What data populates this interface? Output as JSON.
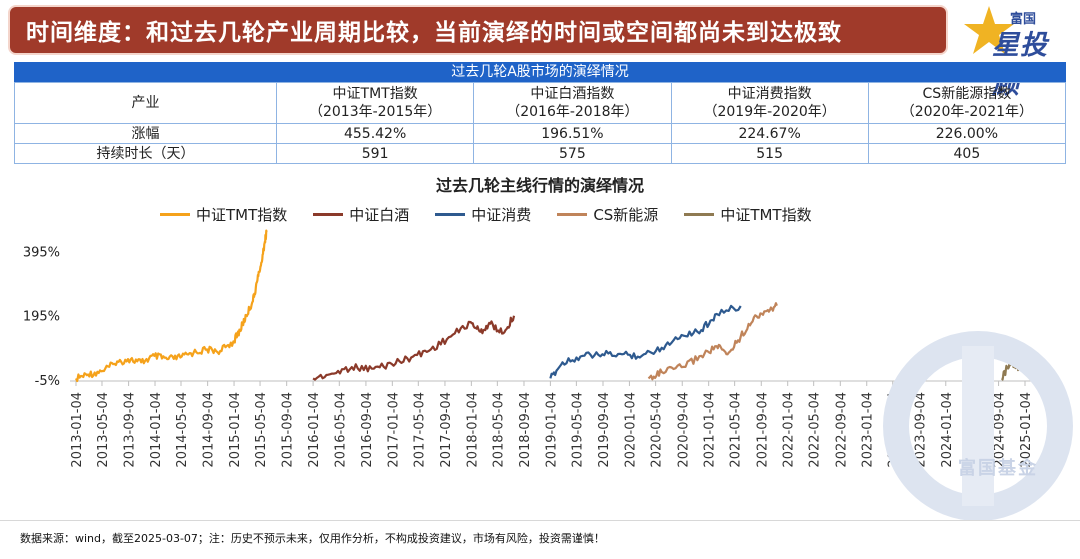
{
  "banner": {
    "title": "时间维度：和过去几轮产业周期比较，当前演绎的时间或空间都尚未到达极致"
  },
  "logo": {
    "small": "富国",
    "big": "星投顾"
  },
  "table": {
    "caption": "过去几轮A股市场的演绎情况",
    "rows": [
      {
        "label": "产业",
        "cells": [
          [
            "中证TMT指数",
            "（2013年-2015年）"
          ],
          [
            "中证白酒指数",
            "（2016年-2018年）"
          ],
          [
            "中证消费指数",
            "（2019年-2020年）"
          ],
          [
            "CS新能源指数",
            "（2020年-2021年）"
          ]
        ]
      },
      {
        "label": "涨幅",
        "cells": [
          [
            "455.42%"
          ],
          [
            "196.51%"
          ],
          [
            "224.67%"
          ],
          [
            "226.00%"
          ]
        ]
      },
      {
        "label": "持续时长（天）",
        "cells": [
          [
            "591"
          ],
          [
            "575"
          ],
          [
            "515"
          ],
          [
            "405"
          ]
        ]
      }
    ]
  },
  "chart_data": {
    "type": "line",
    "title": "过去几轮主线行情的演绎情况",
    "ylim": [
      -5,
      460
    ],
    "y_ticks": [
      "395%",
      "195%",
      "-5%"
    ],
    "y_tick_values": [
      395,
      195,
      -5
    ],
    "x_ticks": [
      "2013-01-04",
      "2013-05-04",
      "2013-09-04",
      "2014-01-04",
      "2014-05-04",
      "2014-09-04",
      "2015-01-04",
      "2015-05-04",
      "2015-09-04",
      "2016-01-04",
      "2016-05-04",
      "2016-09-04",
      "2017-01-04",
      "2017-05-04",
      "2017-09-04",
      "2018-01-04",
      "2018-05-04",
      "2018-09-04",
      "2019-01-04",
      "2019-05-04",
      "2019-09-04",
      "2020-01-04",
      "2020-05-04",
      "2020-09-04",
      "2021-01-04",
      "2021-05-04",
      "2021-09-04",
      "2022-01-04",
      "2022-05-04",
      "2022-09-04",
      "2023-01-04",
      "2023-05-04",
      "2023-09-04",
      "2024-01-04",
      "2024-05-04",
      "2024-09-04",
      "2025-01-04"
    ],
    "series": [
      {
        "name": "中证TMT指数",
        "color": "#f5a21b",
        "x": [
          "2013-01-04",
          "2013-03-01",
          "2013-05-01",
          "2013-07-01",
          "2013-09-01",
          "2013-11-01",
          "2014-01-01",
          "2014-03-01",
          "2014-05-01",
          "2014-07-01",
          "2014-09-01",
          "2014-11-01",
          "2015-01-01",
          "2015-02-01",
          "2015-03-01",
          "2015-04-01",
          "2015-04-20",
          "2015-05-10",
          "2015-05-25",
          "2015-06-03"
        ],
        "values": [
          0,
          12,
          22,
          45,
          60,
          50,
          70,
          60,
          65,
          80,
          90,
          85,
          115,
          150,
          195,
          240,
          300,
          360,
          420,
          455
        ]
      },
      {
        "name": "中证白酒",
        "color": "#8b3a2a",
        "x": [
          "2016-01-04",
          "2016-04-01",
          "2016-07-01",
          "2016-10-01",
          "2017-01-01",
          "2017-04-01",
          "2017-07-01",
          "2017-10-01",
          "2018-01-01",
          "2018-02-15",
          "2018-04-01",
          "2018-06-01",
          "2018-07-20"
        ],
        "values": [
          0,
          15,
          35,
          30,
          45,
          65,
          90,
          130,
          175,
          145,
          170,
          140,
          195
        ]
      },
      {
        "name": "中证消费",
        "color": "#2e5a8f",
        "x": [
          "2019-01-04",
          "2019-03-01",
          "2019-06-01",
          "2019-09-01",
          "2019-12-01",
          "2020-03-01",
          "2020-06-01",
          "2020-09-01",
          "2020-12-01",
          "2021-02-10",
          "2021-06-01"
        ],
        "values": [
          0,
          50,
          70,
          75,
          75,
          70,
          95,
          135,
          150,
          200,
          225
        ]
      },
      {
        "name": "CS新能源",
        "color": "#c0845a",
        "x": [
          "2020-04-01",
          "2020-06-01",
          "2020-09-01",
          "2020-12-01",
          "2021-02-10",
          "2021-04-01",
          "2021-06-01",
          "2021-08-01",
          "2021-09-30",
          "2021-11-15"
        ],
        "values": [
          0,
          20,
          35,
          70,
          100,
          75,
          130,
          190,
          210,
          226
        ]
      },
      {
        "name": "中证TMT指数",
        "color": "#8f7a52",
        "x": [
          "2024-09-20",
          "2024-10-15",
          "2024-11-15",
          "2024-12-15",
          "2025-01-15",
          "2025-02-15",
          "2025-03-07"
        ],
        "values": [
          0,
          35,
          45,
          30,
          50,
          45,
          65
        ]
      }
    ]
  },
  "watermark": {
    "text": "富国基金"
  },
  "footer": {
    "text": "数据来源：wind，截至2025-03-07；注：历史不预示未来，仅用作分析，不构成投资建议，市场有风险，投资需谨慎！"
  }
}
